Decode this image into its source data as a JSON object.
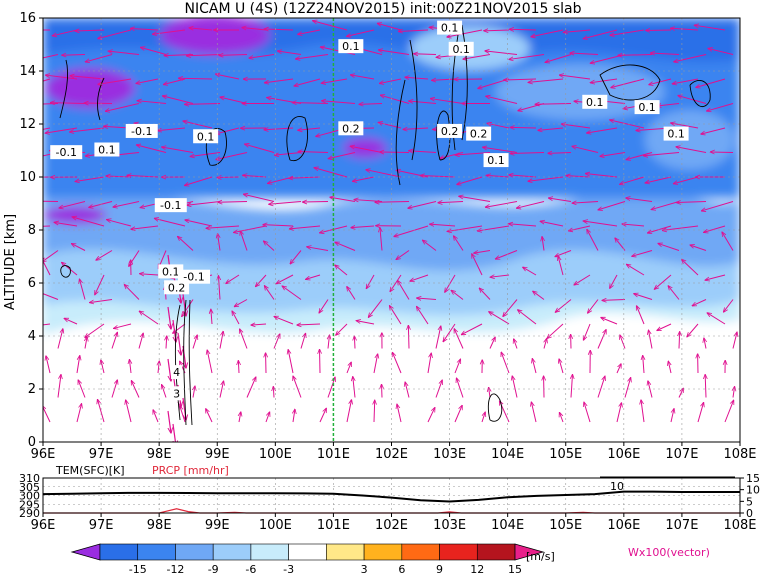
{
  "chart_data": [
    {
      "type": "heatmap",
      "title": "NICAM U (4S) (12Z24NOV2015) init:00Z21NOV2015 slab",
      "ylabel": "ALTITUDE [km]",
      "x_ticks": [
        "96E",
        "97E",
        "98E",
        "99E",
        "100E",
        "101E",
        "102E",
        "103E",
        "104E",
        "105E",
        "106E",
        "107E",
        "108E"
      ],
      "x_values": [
        96,
        97,
        98,
        99,
        100,
        101,
        102,
        103,
        104,
        105,
        106,
        107,
        108
      ],
      "xlim": [
        96,
        108
      ],
      "y_ticks": [
        "0",
        "2",
        "4",
        "6",
        "8",
        "10",
        "12",
        "14",
        "16"
      ],
      "y_values": [
        0,
        2,
        4,
        6,
        8,
        10,
        12,
        14,
        16
      ],
      "ylim": [
        0,
        16
      ],
      "highlight_x": 101,
      "contour_labels": [
        {
          "text": "-0.1",
          "x": 96.4,
          "y": 10.9
        },
        {
          "text": "0.1",
          "x": 97.1,
          "y": 11.0
        },
        {
          "text": "-0.1",
          "x": 97.7,
          "y": 11.7
        },
        {
          "text": "0.1",
          "x": 98.8,
          "y": 11.5
        },
        {
          "text": "-0.1",
          "x": 98.2,
          "y": 8.9
        },
        {
          "text": "0.1",
          "x": 98.2,
          "y": 6.4
        },
        {
          "text": "0.2",
          "x": 98.3,
          "y": 5.8
        },
        {
          "text": "-0.1",
          "x": 98.6,
          "y": 6.2
        },
        {
          "text": "4",
          "x": 98.3,
          "y": 2.6
        },
        {
          "text": "3",
          "x": 98.3,
          "y": 1.8
        },
        {
          "text": "0.1",
          "x": 101.3,
          "y": 14.9
        },
        {
          "text": "0.2",
          "x": 101.3,
          "y": 11.8
        },
        {
          "text": "0.1",
          "x": 103.0,
          "y": 15.6
        },
        {
          "text": "0.1",
          "x": 103.2,
          "y": 14.8
        },
        {
          "text": "0.2",
          "x": 103.0,
          "y": 11.7
        },
        {
          "text": "0.2",
          "x": 103.5,
          "y": 11.6
        },
        {
          "text": "0.1",
          "x": 103.8,
          "y": 10.6
        },
        {
          "text": "0.1",
          "x": 105.5,
          "y": 12.8
        },
        {
          "text": "0.1",
          "x": 106.4,
          "y": 12.6
        },
        {
          "text": "0.1",
          "x": 106.9,
          "y": 11.6
        }
      ]
    },
    {
      "type": "line",
      "x_ticks": [
        "96E",
        "97E",
        "98E",
        "99E",
        "100E",
        "101E",
        "102E",
        "103E",
        "104E",
        "105E",
        "106E",
        "107E",
        "108E"
      ],
      "xlim": [
        96,
        108
      ],
      "left_label": "TEM(SFC)[K]",
      "right_label": "PRCP [mm/hr]",
      "left_ticks": [
        "310",
        "305",
        "300",
        "295",
        "290"
      ],
      "right_ticks": [
        "15",
        "10",
        "5",
        "0"
      ],
      "left_ylim": [
        290,
        310
      ],
      "right_ylim": [
        0,
        15
      ],
      "annotation": "10",
      "series": [
        {
          "x": [
            96,
            96.5,
            97,
            97.5,
            98,
            98.5,
            99,
            99.5,
            100,
            100.5,
            101,
            101.5,
            102,
            102.5,
            103,
            103.5,
            104,
            104.5,
            105,
            105.5,
            106,
            106.5,
            107,
            107.5,
            108
          ],
          "y": [
            300.8,
            301.0,
            301.3,
            301.5,
            301.5,
            301.4,
            301.3,
            301.3,
            301.3,
            301.2,
            301.0,
            300.0,
            298.8,
            297.3,
            296.6,
            297.5,
            299.0,
            299.8,
            300.3,
            300.8,
            302.2,
            302.2,
            302.0,
            302.0,
            302.0
          ]
        },
        {
          "x": [
            96,
            97,
            98,
            98.1,
            98.3,
            98.5,
            98.7,
            99,
            99.3,
            99.5,
            100,
            101,
            102,
            102.8,
            103,
            103.2,
            104,
            105,
            105.3,
            105.5,
            106,
            107,
            108
          ],
          "y": [
            0,
            0,
            0,
            0.6,
            1.8,
            0.6,
            0,
            0,
            0.3,
            0,
            0,
            0,
            0,
            0,
            0.5,
            0,
            0,
            0,
            0.3,
            0,
            0,
            0,
            0
          ]
        }
      ]
    },
    {
      "type": "colorbar",
      "tick_labels": [
        "-15",
        "-12",
        "-9",
        "-6",
        "-3",
        "3",
        "6",
        "9",
        "12",
        "15"
      ],
      "unit": "[m/s]",
      "colors": [
        "#9a2de0",
        "#2a6fe8",
        "#3b84f0",
        "#6fa8f5",
        "#9ccdfa",
        "#c8ecfb",
        "#ffffff",
        "#ffe888",
        "#ffb21e",
        "#ff6a14",
        "#e8231e",
        "#b5141e",
        "#e8208a"
      ],
      "vector_label": "Wx100(vector)"
    }
  ]
}
